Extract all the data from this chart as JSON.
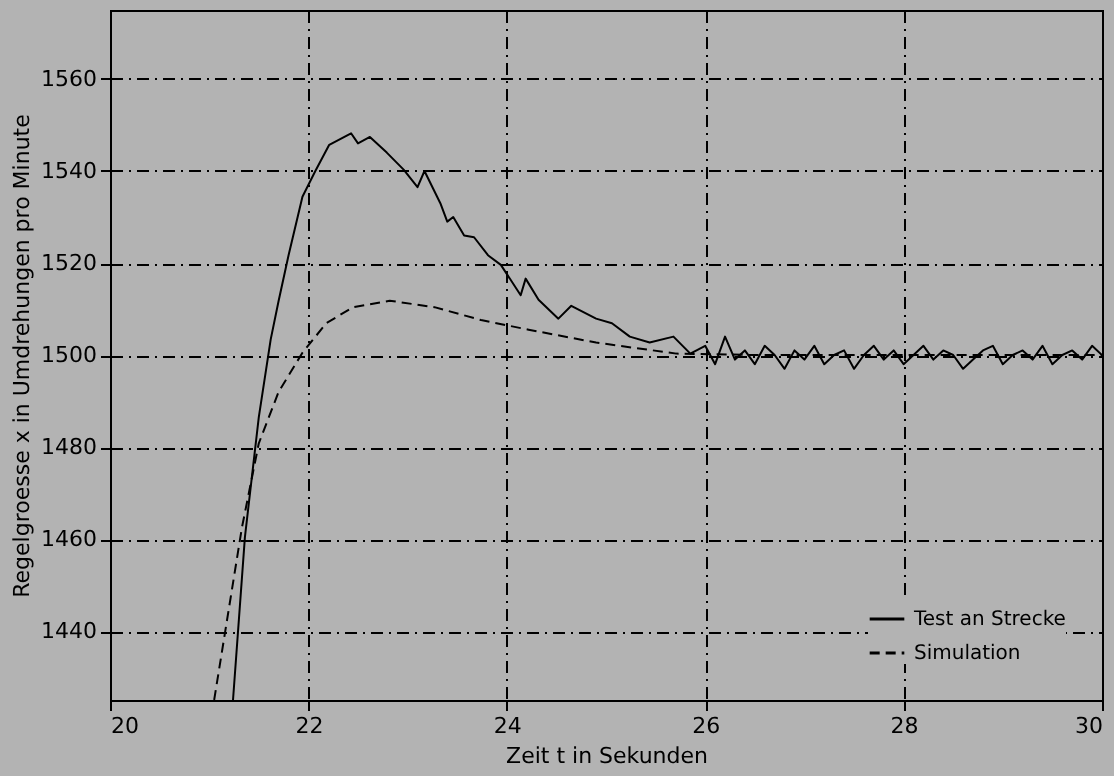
{
  "chart_data": {
    "type": "line",
    "xlabel": "Zeit t in Sekunden",
    "ylabel": "Regelgroesse x in Umdrehungen pro Minute",
    "xlim": [
      20,
      30
    ],
    "xticks": [
      20,
      22,
      24,
      26,
      28,
      30
    ],
    "ylim": [
      1425,
      1575
    ],
    "yticks": [
      1440,
      1460,
      1480,
      1500,
      1520,
      1540,
      1560
    ],
    "grid": true,
    "legend": "bottom right",
    "series": [
      {
        "name": "Test an Strecke",
        "color": "#000000",
        "line_style": "solid",
        "x": [
          21.24,
          21.36,
          21.5,
          21.62,
          21.7,
          21.8,
          21.94,
          22.07,
          22.21,
          22.43,
          22.5,
          22.62,
          22.79,
          22.96,
          23.1,
          23.17,
          23.33,
          23.4,
          23.46,
          23.57,
          23.67,
          23.81,
          23.94,
          24.14,
          24.19,
          24.32,
          24.52,
          24.65,
          24.9,
          25.06,
          25.24,
          25.44,
          25.68,
          25.85,
          26.0,
          26.1,
          26.2,
          26.3,
          26.4,
          26.5,
          26.6,
          26.7,
          26.8,
          26.9,
          27.0,
          27.1,
          27.2,
          27.3,
          27.4,
          27.5,
          27.6,
          27.7,
          27.8,
          27.9,
          28.0,
          28.1,
          28.2,
          28.3,
          28.4,
          28.5,
          28.6,
          28.7,
          28.8,
          28.9,
          29.0,
          29.1,
          29.2,
          29.3,
          29.4,
          29.5,
          29.6,
          29.7,
          29.8,
          29.9,
          30.0
        ],
        "values": [
          1425,
          1460.4,
          1486.5,
          1503.4,
          1511.8,
          1521.7,
          1534.4,
          1540,
          1545.7,
          1548.2,
          1546,
          1547.4,
          1544,
          1540.3,
          1536.5,
          1540,
          1533,
          1529,
          1530,
          1526,
          1525.6,
          1521.7,
          1519.6,
          1513,
          1516.6,
          1512,
          1507.9,
          1510.7,
          1507.9,
          1506.9,
          1504,
          1502.7,
          1504,
          1500.3,
          1502,
          1498,
          1504,
          1499,
          1501,
          1498,
          1502,
          1500,
          1497,
          1501,
          1499,
          1502,
          1498,
          1500,
          1501,
          1497,
          1500,
          1502,
          1499,
          1501,
          1498,
          1500,
          1502,
          1499,
          1501,
          1500,
          1497,
          1499,
          1501,
          1502,
          1498,
          1500,
          1501,
          1499,
          1502,
          1498,
          1500,
          1501,
          1499,
          1502,
          1500
        ]
      },
      {
        "name": "Simulation",
        "color": "#000000",
        "line_style": "dashed",
        "x": [
          21.05,
          21.33,
          21.5,
          21.7,
          21.94,
          22.18,
          22.45,
          22.82,
          23.27,
          23.74,
          24.22,
          24.9,
          25.71,
          26.5,
          27.5,
          28.5,
          30.0
        ],
        "values": [
          1425,
          1462.5,
          1480.8,
          1492,
          1500.5,
          1506.9,
          1510.4,
          1511.8,
          1510.4,
          1507.6,
          1505.5,
          1502.7,
          1500.3,
          1500,
          1500,
          1500,
          1500
        ]
      }
    ]
  }
}
